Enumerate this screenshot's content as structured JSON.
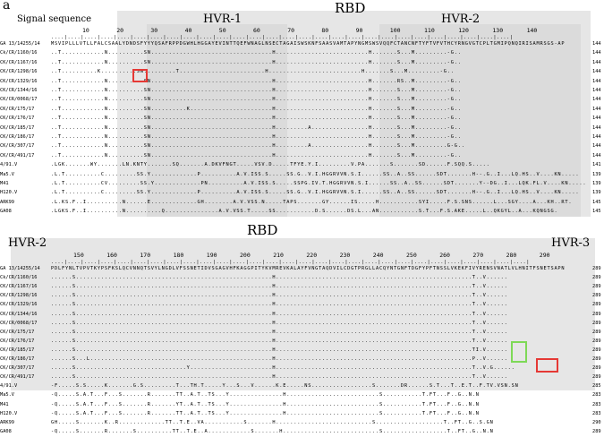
{
  "panel_label": "a",
  "top_panel": {
    "rbd_label": "RBD",
    "signal_label": "Signal sequence",
    "hvr1_label": "HVR-1",
    "hvr2_label": "HVR-2",
    "ticks": [
      "10",
      "20",
      "30",
      "40",
      "50",
      "60",
      "70",
      "80",
      "90",
      "100",
      "110",
      "120",
      "130",
      "140"
    ],
    "ruler": "....|....|....|....|....|....|....|....|....|....|....|....|....|....|....|....|....|....|....|....|....|....|....|....|....|....|....|....|",
    "rows": [
      {
        "name": "GA 13/14255/14",
        "seq": "MSVIPLLLVTLLFALCSAALYDNDSFYYYQSAFRPPDGWHLHGGAYEVINTTQEFWNAGLNSECTAGAISWSKNFSAASVAMTAPYNGMSWSVQQFCTANCNFTYFTVFVTHCYRNGVGTCPLTGMIPQNQIRISAMRSGS-AP",
        "count": "144"
      },
      {
        "name": "Ck/CR/1160/16",
        "seq": "..T............N..........SN..................................H..........................H.......S...M.........-G..",
        "count": "144"
      },
      {
        "name": "CK/CR/1167/16",
        "seq": "..T............N..........SN..................................H..........................H.......S...M.........-G..",
        "count": "144"
      },
      {
        "name": "CK/CR/1298/16",
        "seq": "..T..........K..........SN.........T........................H..........................H.......S...M.........-G..",
        "count": "144"
      },
      {
        "name": "CK/CR/1329/16",
        "seq": "..T............N..........SN..................................H..........................H.......RS..M.........-G..",
        "count": "144"
      },
      {
        "name": "CK/CR/1344/16",
        "seq": "..T............N..........SN..................................H..........................H.......S...M.........-G..",
        "count": "144"
      },
      {
        "name": "CK/CR/0068/17",
        "seq": "..T............N..........SN..................................H..........................H.......S...M.........-G..",
        "count": "144"
      },
      {
        "name": "CK/CR/175/17",
        "seq": "..T............N..........SN..........K.......................H..........................H.......S...M.........-G..",
        "count": "144"
      },
      {
        "name": "CK/CR/176/17",
        "seq": "..T............N..........SN..................................H..........................H.......S...M.........-G..",
        "count": "144"
      },
      {
        "name": "CK/CR/185/17",
        "seq": "..T............N..........SN..................................H.........A................H.......S...M.........-G..",
        "count": "144"
      },
      {
        "name": "CK/CR/186/17",
        "seq": "..T............N..........SN..................................H..........................H.......S...M.........-G..",
        "count": "144"
      },
      {
        "name": "CK/CR/307/17",
        "seq": "..T............N..........SN..................................H.........A................H.......S...M.........G-G..",
        "count": "144"
      },
      {
        "name": "CK/CR/491/17",
        "seq": "..T............N..........SN..................................H..........................H.......S...M.........-G..",
        "count": "144"
      },
      {
        "name": "4/91.V",
        "seq": ".LGK.......WY.......LN.KNTY.......SQ.......A.DKVFNGT.....VSV.D.....TFYE.Y.I.........V.PA.......S.......SD......F.SQQ.S.....",
        "count": "141"
      },
      {
        "name": "Ma5.V",
        "seq": ".L.T..........C.........SS.Y.............P..........A.V.ISS.S.....SS.G..V.I.HGGRVVN.S.I......SS..A..SS......SDT.......H--.G..I...LQ.HS..V....KN.....",
        "count": "139"
      },
      {
        "name": "M41",
        "seq": ".L.T..........CV.........SS.Y.............PN..........A.V.ISS.S.....SSPG.IV.T.HGGRVVN.S.I......SS..A..SS......SDT.......Y--DG..I...LQK.FL.V....KN.....",
        "count": "139"
      },
      {
        "name": "H120.V",
        "seq": ".L.T..........C.........SS.Y.............P..........A.V.ISS.S.....SS.G..V.I.HGGRVVN.S.I......SS..A..SS......SDT.......H--.G..I...LQ.HS..V....KN.....",
        "count": "139"
      },
      {
        "name": "ARK99",
        "seq": ".L.KS.F..I..........N......E.............GH........A.V.VSS.N.....TAPS.......GY......IS.....H...........SYI.....F.S.SNS......L...SGY....A...KH..RT.",
        "count": "145"
      },
      {
        "name": "GA08",
        "seq": ".LGKS.F..I..........N..........Q...............A.V.VSS.T.....SS...........D.S......DS.L...AN...........S.T...F.S.AKE.....L..QKGYL..A...KQNGSG.",
        "count": "145"
      }
    ]
  },
  "bottom_panel": {
    "rbd_label": "RBD",
    "hvr2_label": "HVR-2",
    "hvr3_label": "HVR-3",
    "ticks": [
      "150",
      "160",
      "170",
      "180",
      "190",
      "200",
      "210",
      "220",
      "230",
      "240",
      "250",
      "260",
      "270",
      "280",
      "290"
    ],
    "ruler": "....|....|....|....|....|....|....|....|....|....|....|....|....|....|....|....|....|....|....|....|....|....|....|....|....|....|....|....|....|",
    "rows": [
      {
        "name": "GA 13/14255/14",
        "seq": "PDLFYNLTVPVTKYPSFKSLQCVNNQTSVYLNGDLVFSSNETIDVSGAGVHFKAGGPITYKVMREVKALAYFVNGTAQDVILCDGTPRGLLACQYNTGNFTDGFYPFTNSSLVKEKFIVYRENSVNATLVLHNITFSNETSAPN",
        "count": "289"
      },
      {
        "name": "Ck/CR/1160/16",
        "seq": "......S.......................................................H.......................................................T..V......",
        "count": "289"
      },
      {
        "name": "CK/CR/1167/16",
        "seq": "......S.......................................................H.......................................................T..V......",
        "count": "289"
      },
      {
        "name": "CK/CR/1298/16",
        "seq": "......S.......................................................H.......................................................T..V......",
        "count": "289"
      },
      {
        "name": "CK/CR/1329/16",
        "seq": "......S.......................................................H.......................................................T..V......",
        "count": "289"
      },
      {
        "name": "CK/CR/1344/16",
        "seq": "......S.......................................................H.......................................................T..V......",
        "count": "289"
      },
      {
        "name": "CK/CR/0068/17",
        "seq": "......S.......................................................H.......................................................T..V......",
        "count": "289"
      },
      {
        "name": "CK/CR/175/17",
        "seq": "......S.......................................................H.......................................................T..V......",
        "count": "289"
      },
      {
        "name": "CK/CR/176/17",
        "seq": "......S.......................................................H.......................................................T..V......",
        "count": "289"
      },
      {
        "name": "CK/CR/185/17",
        "seq": "......S.......................................................H.......................................................TI.V......",
        "count": "289"
      },
      {
        "name": "CK/CR/186/17",
        "seq": "......S...L...................................................H.......................................................P..V......",
        "count": "289"
      },
      {
        "name": "CK/CR/307/17",
        "seq": "......S...............................Y.......................H.......................................................T..V.G......",
        "count": "289"
      },
      {
        "name": "CK/CR/491/17",
        "seq": "......S.......................................................H.......................................................T..V......",
        "count": "289"
      },
      {
        "name": "4/91.V",
        "seq": "-F.....S.S.....K.......G.S.........T...TH.T.....Y...S...V......K.E.....NS.................S.......DR......S.T...T..E.T..F.TV.VSN.SN",
        "count": "285"
      },
      {
        "name": "Ma5.V",
        "seq": "-Q.....S.A.T...F...S.......R.......TT..A.T..TS...Y...............H..........................S...........T.FT...F..G..N.N",
        "count": "283"
      },
      {
        "name": "M41",
        "seq": "-Q.....S.A.T...F...S.......R.......YT..A.T..TS...Y...............H..........................S...........T.FT...F..G..N.N",
        "count": "283"
      },
      {
        "name": "H120.V",
        "seq": "-Q.....S.A.T...F...S.......R.......TT..A.T..TS...Y...............H..........................S...........T.FT...F..G..N.N",
        "count": "283"
      },
      {
        "name": "ARK99",
        "seq": "GH.....S.......K..R.............TT..T.E..VA...........S.......H...........................S...................T..FT..G..S.GN",
        "count": "290"
      },
      {
        "name": "GA08",
        "seq": "-Q.....S.......R.......S..........TT..T.E..A............S.......H...........................S..................T..FT..G..N.N",
        "count": "289"
      }
    ]
  }
}
